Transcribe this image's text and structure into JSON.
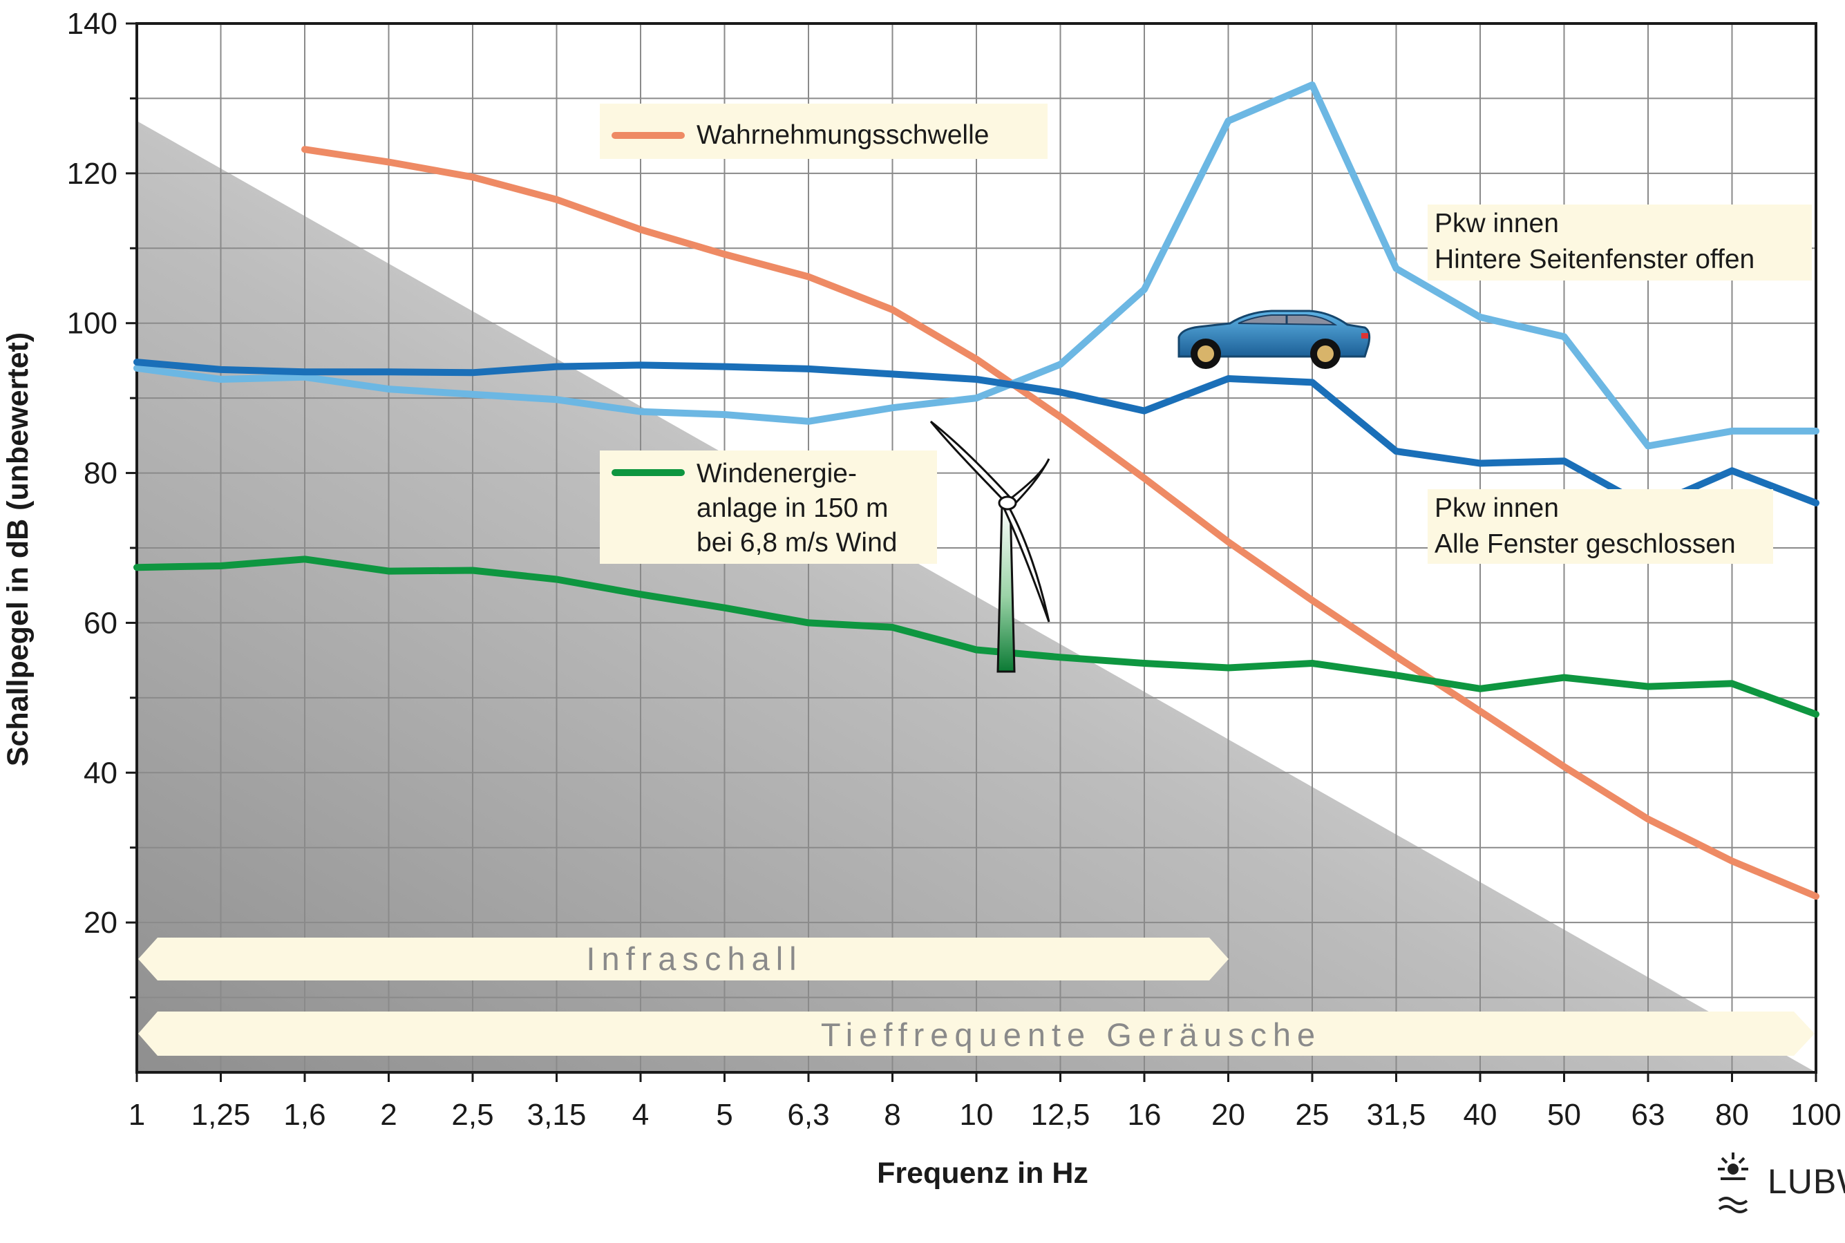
{
  "chart_data": {
    "type": "line",
    "xlabel": "Frequenz in Hz",
    "ylabel": "Schallpegel in dB (unbewertet)",
    "x_scale": "log (third-octave bands)",
    "categories": [
      "1",
      "1,25",
      "1,6",
      "2",
      "2,5",
      "3,15",
      "4",
      "5",
      "6,3",
      "8",
      "10",
      "12,5",
      "16",
      "20",
      "25",
      "31,5",
      "40",
      "50",
      "63",
      "80",
      "100"
    ],
    "ylim": [
      0,
      140
    ],
    "yticks": [
      20,
      40,
      60,
      80,
      100,
      120,
      140
    ],
    "ytick_labels": [
      "20",
      "40",
      "60",
      "80",
      "100",
      "120",
      "140"
    ],
    "grid": true,
    "series": [
      {
        "key": "threshold",
        "name": "Wahrnehmungsschwelle",
        "color": "#EE8A64",
        "values": [
          null,
          null,
          123.2,
          121.5,
          119.5,
          116.5,
          112.5,
          109.2,
          106.2,
          101.8,
          95.2,
          87.5,
          79.3,
          70.8,
          63.0,
          55.5,
          48.2,
          40.8,
          33.8,
          28.2,
          23.5
        ]
      },
      {
        "key": "car_open",
        "name": "Pkw innen Hintere Seitenfenster offen",
        "color": "#6CB7E3",
        "values": [
          94.0,
          92.5,
          92.8,
          91.2,
          90.5,
          89.8,
          88.2,
          87.8,
          86.9,
          88.7,
          90.0,
          94.5,
          104.5,
          127.0,
          131.8,
          107.3,
          100.8,
          98.2,
          83.6,
          85.6,
          85.6
        ]
      },
      {
        "key": "car_closed",
        "name": "Pkw innen Alle Fenster geschlossen",
        "color": "#1A6FB8",
        "values": [
          94.8,
          93.8,
          93.5,
          93.5,
          93.4,
          94.2,
          94.4,
          94.2,
          93.9,
          93.2,
          92.5,
          90.8,
          88.3,
          92.6,
          92.1,
          82.9,
          81.3,
          81.6,
          75.4,
          80.3,
          76.0
        ]
      },
      {
        "key": "wind",
        "name": "Windenergieanlage in 150 m bei 6,8 m/s Wind",
        "color": "#0E9640",
        "values": [
          67.4,
          67.6,
          68.5,
          66.9,
          67.0,
          65.8,
          63.8,
          62.0,
          60.0,
          59.4,
          56.4,
          55.4,
          54.6,
          54.0,
          54.6,
          53.0,
          51.2,
          52.7,
          51.5,
          51.9,
          47.8
        ]
      }
    ],
    "legend": {
      "threshold": "Wahrnehmungsschwelle",
      "wind": [
        "Windenergie-",
        "anlage in 150 m",
        "bei 6,8 m/s Wind"
      ],
      "car_open": [
        "Pkw innen",
        "Hintere Seitenfenster offen"
      ],
      "car_closed": [
        "Pkw innen",
        "Alle Fenster geschlossen"
      ]
    },
    "bands": {
      "infraschall": "Infraschall",
      "tieffrequent": "Tieffrequente Geräusche"
    },
    "logo": "LUBW",
    "colors": {
      "label_box": "#FDF8E1",
      "grid": "#8A8A8A",
      "axis": "#1A1A1A"
    }
  }
}
